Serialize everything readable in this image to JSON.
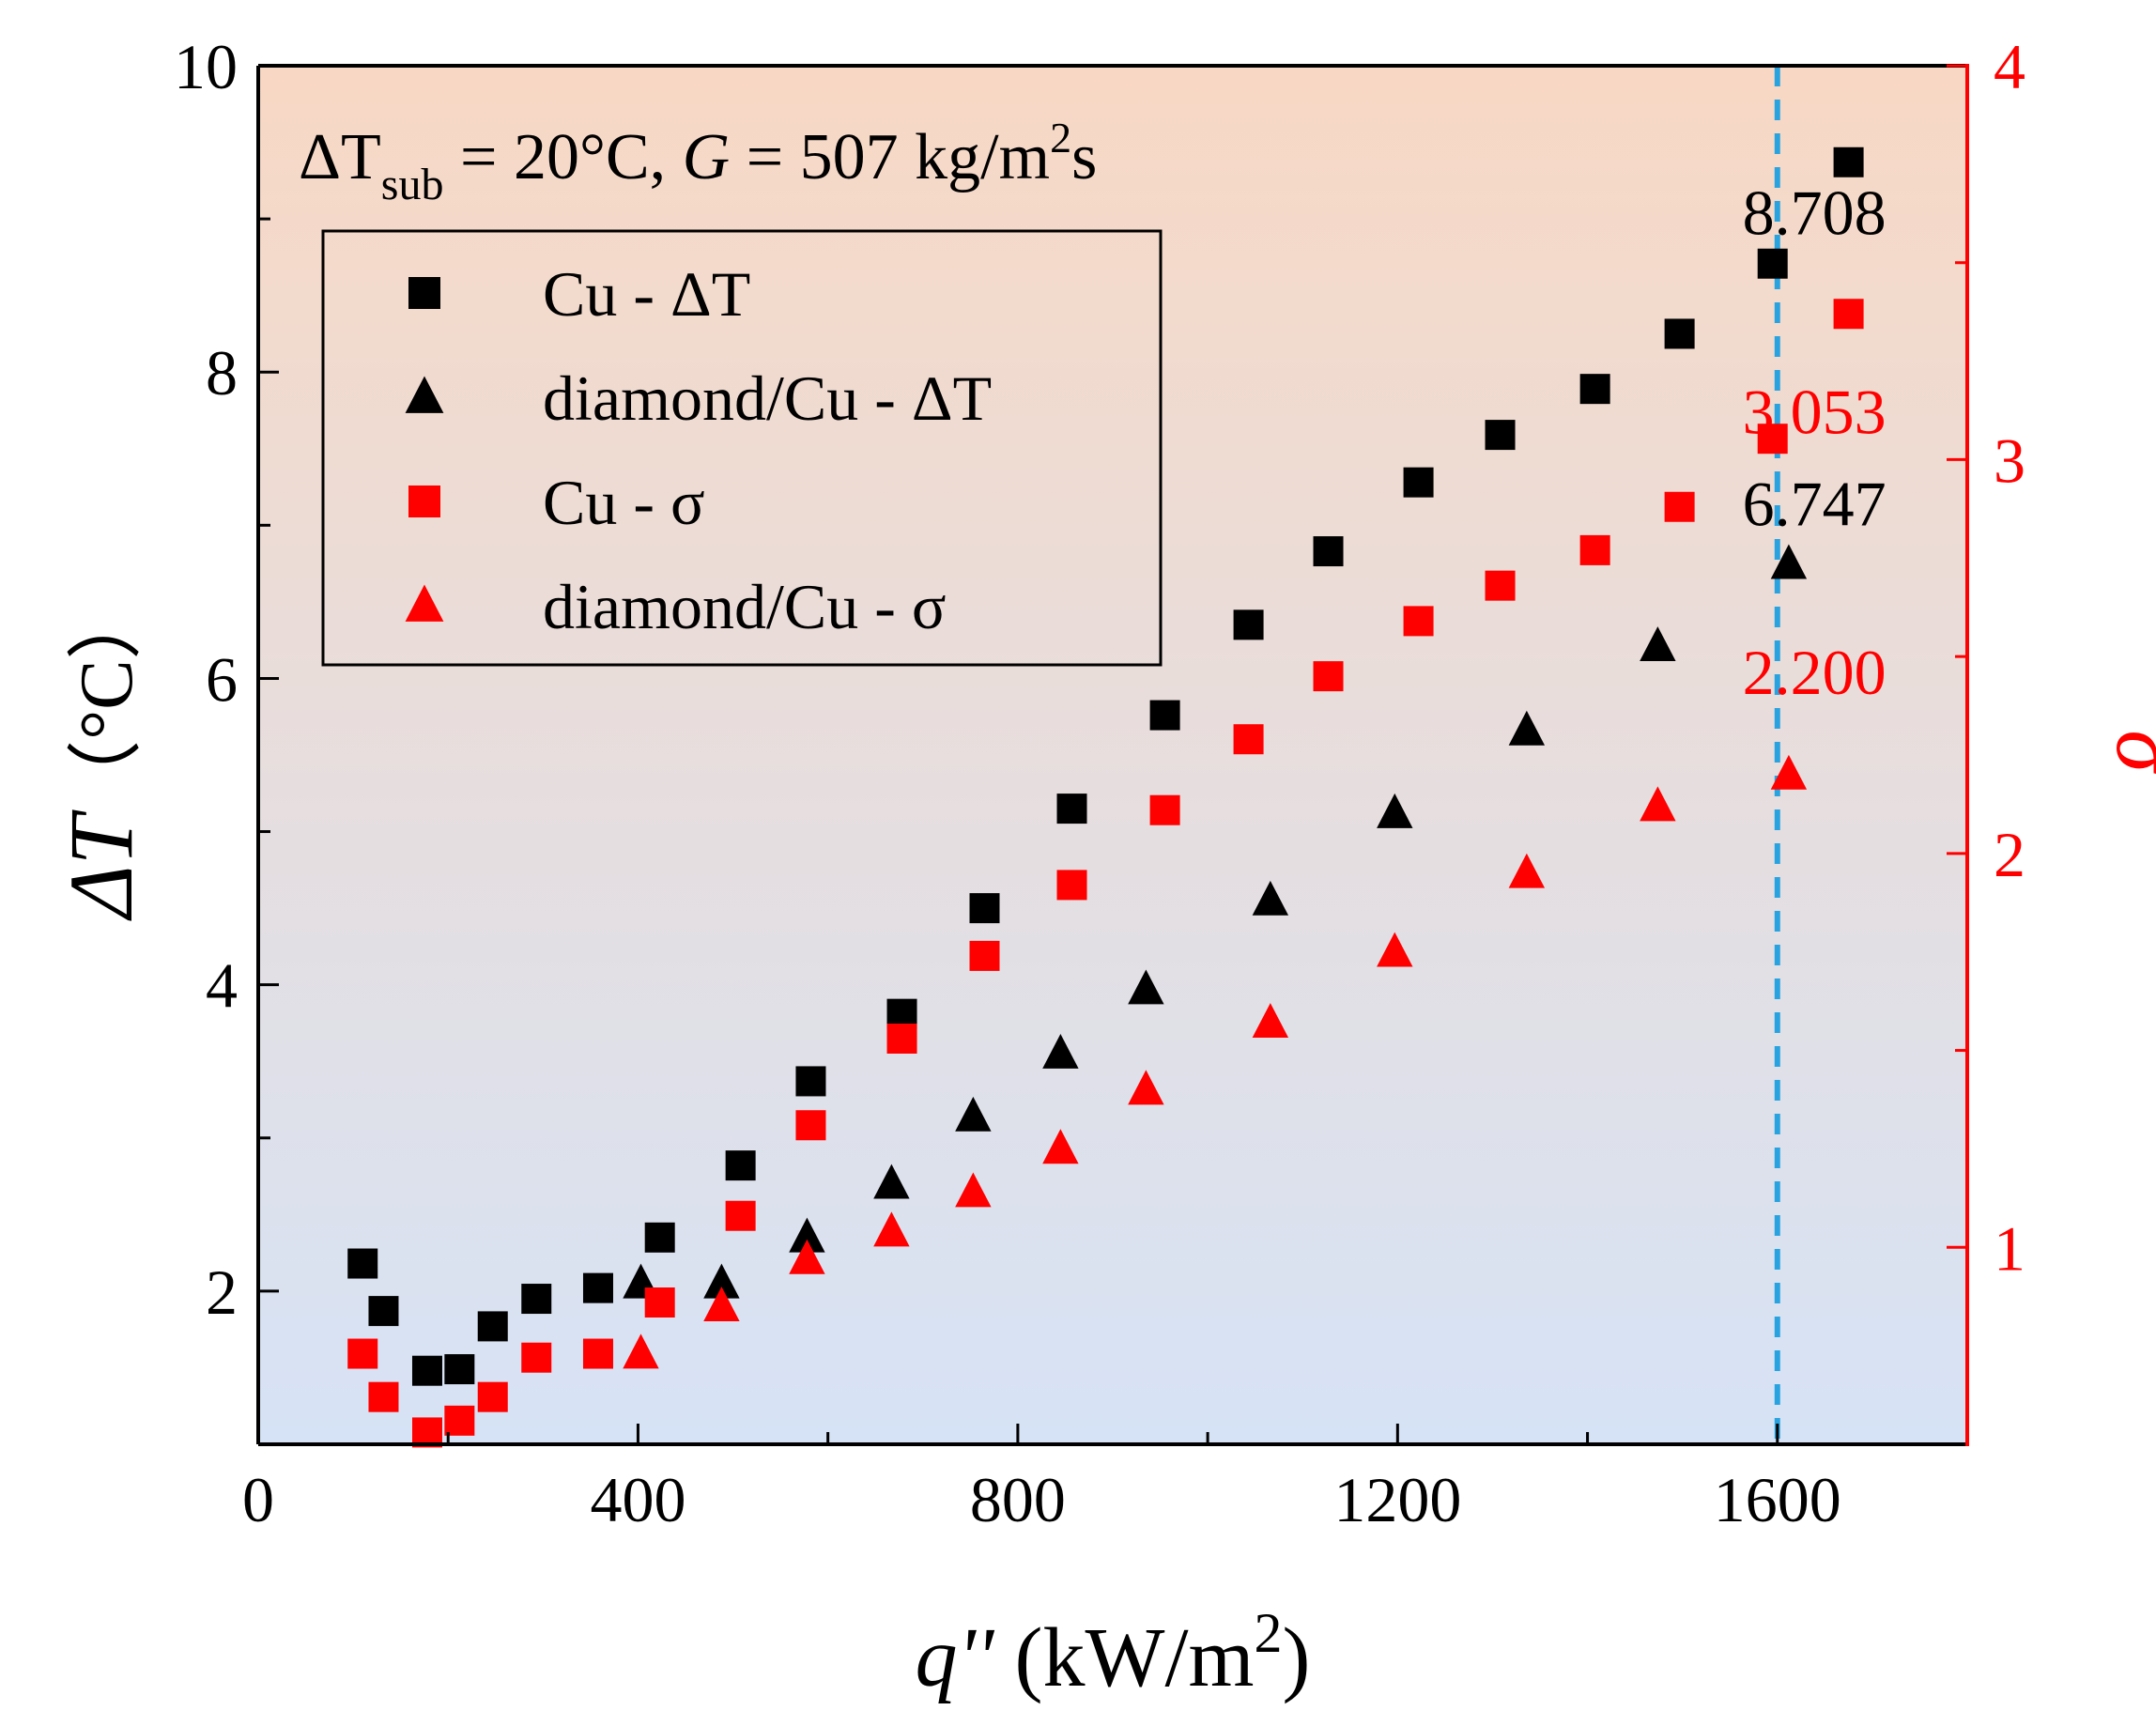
{
  "chart_data": {
    "type": "scatter",
    "xlabel": {
      "var": "q''",
      "unit": " (kW/m",
      "sup": "2",
      "close": ")"
    },
    "ylabel_left": {
      "var": "ΔT",
      "unit": "（°C）"
    },
    "ylabel_right": "σ",
    "xlim": [
      0,
      1800
    ],
    "ylim_left": [
      1,
      10
    ],
    "ylim_right": [
      0.5,
      4
    ],
    "x_ticks": [
      0,
      400,
      800,
      1200,
      1600
    ],
    "x_tick_labels": [
      "0",
      "400",
      "800",
      "1200",
      "1600"
    ],
    "y_left_ticks": [
      2,
      4,
      6,
      8,
      10
    ],
    "y_left_tick_labels": [
      "2",
      "4",
      "6",
      "8",
      "10"
    ],
    "y_right_ticks": [
      1,
      2,
      3,
      4
    ],
    "y_right_tick_labels": [
      "1",
      "2",
      "3",
      "4"
    ],
    "condition": {
      "delta": "ΔT",
      "sub": "sub",
      "eq1": " = 20°C, ",
      "g": "G",
      "eq2": " = 507 kg/m",
      "sup": "2",
      "tail": "s"
    },
    "legend_position": "top-left",
    "vline_x": 1600,
    "colors": {
      "black": "#000000",
      "red": "#ff0000",
      "vline": "#29a3e0",
      "bg_top": "#f8d8c4",
      "bg_bottom": "#d6e3f6"
    },
    "series": [
      {
        "name": "Cu - ΔT",
        "axis": "left",
        "marker": "square",
        "color": "#000000",
        "x": [
          110,
          132,
          178,
          212,
          247,
          293,
          358,
          423,
          508,
          582,
          678,
          765,
          857,
          955,
          1043,
          1127,
          1222,
          1308,
          1408,
          1497,
          1595,
          1675
        ],
        "y": [
          2.18,
          1.87,
          1.48,
          1.49,
          1.77,
          1.95,
          2.02,
          2.35,
          2.82,
          3.37,
          3.81,
          4.5,
          5.15,
          5.76,
          6.35,
          6.83,
          7.28,
          7.59,
          7.89,
          8.25,
          8.708,
          9.37
        ]
      },
      {
        "name": "diamond/Cu - ΔT",
        "axis": "left",
        "marker": "triangle",
        "color": "#000000",
        "x": [
          403,
          488,
          578,
          667,
          753,
          845,
          935,
          1066,
          1197,
          1336,
          1474,
          1612
        ],
        "y": [
          2.05,
          2.05,
          2.35,
          2.7,
          3.14,
          3.55,
          3.97,
          4.55,
          5.12,
          5.66,
          6.21,
          6.747
        ]
      },
      {
        "name": "Cu - σ",
        "axis": "right",
        "marker": "square",
        "color": "#ff0000",
        "x": [
          110,
          132,
          178,
          212,
          247,
          293,
          358,
          423,
          508,
          582,
          678,
          765,
          857,
          955,
          1043,
          1127,
          1222,
          1308,
          1408,
          1497,
          1595,
          1675
        ],
        "y": [
          0.73,
          0.62,
          0.53,
          0.56,
          0.62,
          0.72,
          0.73,
          0.86,
          1.08,
          1.31,
          1.53,
          1.74,
          1.92,
          2.11,
          2.29,
          2.45,
          2.59,
          2.68,
          2.77,
          2.88,
          3.053,
          3.37
        ]
      },
      {
        "name": "diamond/Cu - σ",
        "axis": "right",
        "marker": "triangle",
        "color": "#ff0000",
        "x": [
          403,
          488,
          578,
          667,
          753,
          845,
          935,
          1066,
          1197,
          1336,
          1474,
          1612
        ],
        "y": [
          0.73,
          0.85,
          0.97,
          1.04,
          1.14,
          1.25,
          1.4,
          1.57,
          1.75,
          1.95,
          2.12,
          2.2
        ]
      }
    ],
    "annotations": [
      {
        "text": "8.708",
        "color": "#000000",
        "x": 1675,
        "y_left": 8.9
      },
      {
        "text": "3.053",
        "color": "#ff0000",
        "x": 1675,
        "y_left": 7.6
      },
      {
        "text": "6.747",
        "color": "#000000",
        "x": 1675,
        "y_left": 7.0
      },
      {
        "text": "2.200",
        "color": "#ff0000",
        "x": 1675,
        "y_left": 5.9
      }
    ]
  }
}
